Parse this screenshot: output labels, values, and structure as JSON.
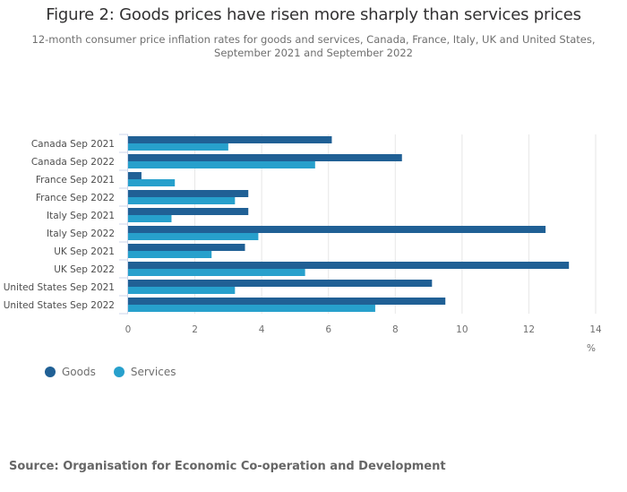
{
  "chart_data": {
    "type": "bar",
    "orientation": "horizontal",
    "title": "Figure 2: Goods prices have risen more sharply than services prices",
    "subtitle": "12-month consumer price inflation rates for goods and services, Canada, France, Italy, UK and United States, September 2021 and September 2022",
    "categories": [
      "Canada Sep 2021",
      "Canada Sep 2022",
      "France Sep 2021",
      "France Sep 2022",
      "Italy Sep 2021",
      "Italy Sep 2022",
      "UK Sep 2021",
      "UK Sep 2022",
      "United States Sep 2021",
      "United States Sep 2022"
    ],
    "series": [
      {
        "name": "Goods",
        "color": "#206095",
        "values": [
          6.1,
          8.2,
          0.4,
          3.6,
          3.6,
          12.5,
          3.5,
          13.2,
          9.1,
          9.5
        ]
      },
      {
        "name": "Services",
        "color": "#27a0cc",
        "values": [
          3.0,
          5.6,
          1.4,
          3.2,
          1.3,
          3.9,
          2.5,
          5.3,
          3.2,
          7.4
        ]
      }
    ],
    "xlabel": "%",
    "ylabel": "",
    "xlim": [
      0,
      14
    ],
    "xticks": [
      0,
      2,
      4,
      6,
      8,
      10,
      12,
      14
    ],
    "grid": true,
    "legend_position": "bottom-left"
  },
  "source": "Source: Organisation for Economic Co-operation and Development"
}
